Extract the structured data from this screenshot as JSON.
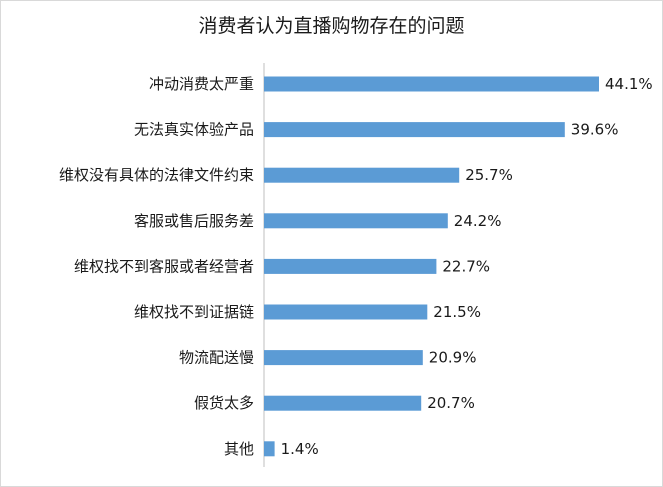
{
  "chart_data": {
    "type": "bar",
    "orientation": "horizontal",
    "title": "消费者认为直播购物存在的问题",
    "categories": [
      "冲动消费太严重",
      "无法真实体验产品",
      "维权没有具体的法律文件约束",
      "客服或售后服务差",
      "维权找不到客服或者经营者",
      "维权找不到证据链",
      "物流配送慢",
      "假货太多",
      "其他"
    ],
    "values": [
      44.1,
      39.6,
      25.7,
      24.2,
      22.7,
      21.5,
      20.9,
      20.7,
      1.4
    ],
    "value_labels": [
      "44.1%",
      "39.6%",
      "25.7%",
      "24.2%",
      "22.7%",
      "21.5%",
      "20.9%",
      "20.7%",
      "1.4%"
    ],
    "xlim": [
      0,
      44.1
    ],
    "grid": false,
    "legend": "none",
    "bar_color": "#5b9bd5"
  }
}
